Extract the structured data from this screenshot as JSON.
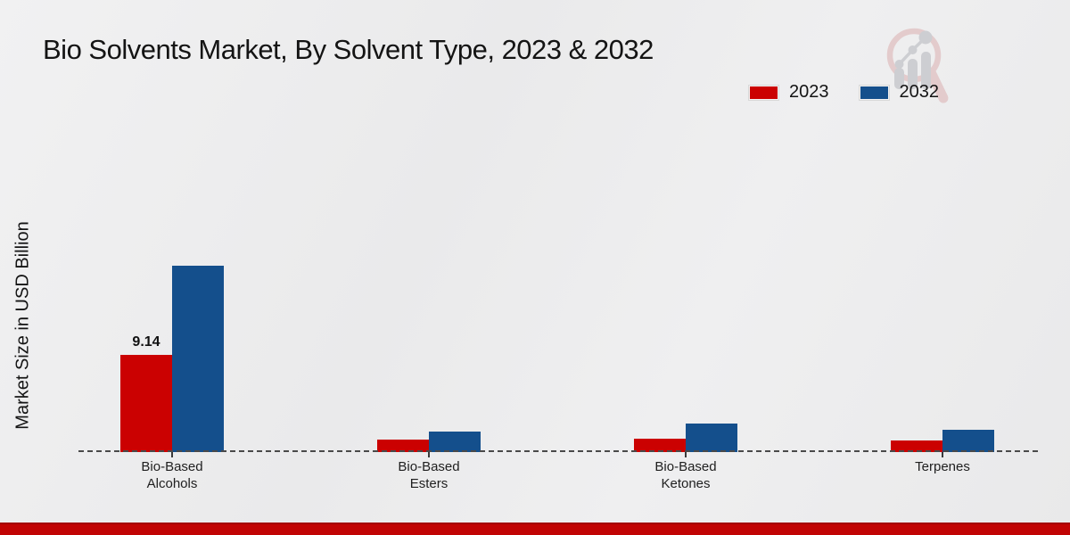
{
  "chart_data": {
    "type": "bar",
    "title": "Bio Solvents Market, By Solvent Type, 2023 & 2032",
    "ylabel": "Market Size in USD Billion",
    "categories": [
      "Bio-Based\nAlcohols",
      "Bio-Based\nEsters",
      "Bio-Based\nKetones",
      "Terpenes"
    ],
    "series": [
      {
        "name": "2023",
        "color": "#cb0101",
        "values": [
          9.14,
          1.17,
          1.26,
          1.05
        ]
      },
      {
        "name": "2032",
        "color": "#144f8c",
        "values": [
          17.52,
          1.93,
          2.68,
          2.1
        ]
      }
    ],
    "data_labels": [
      {
        "group_index": 0,
        "series_index": 0,
        "text": "9.14"
      }
    ],
    "legend": {
      "position": "top-right",
      "entries": [
        "2023",
        "2032"
      ]
    },
    "baseline": {
      "style": "dashed",
      "color": "#4a4a4a"
    },
    "ylim": [
      0,
      18.5
    ],
    "grid": false
  },
  "branding": {
    "watermark_icon": "magnifier-bar-chart-logo",
    "footer_color": "#c10404"
  }
}
